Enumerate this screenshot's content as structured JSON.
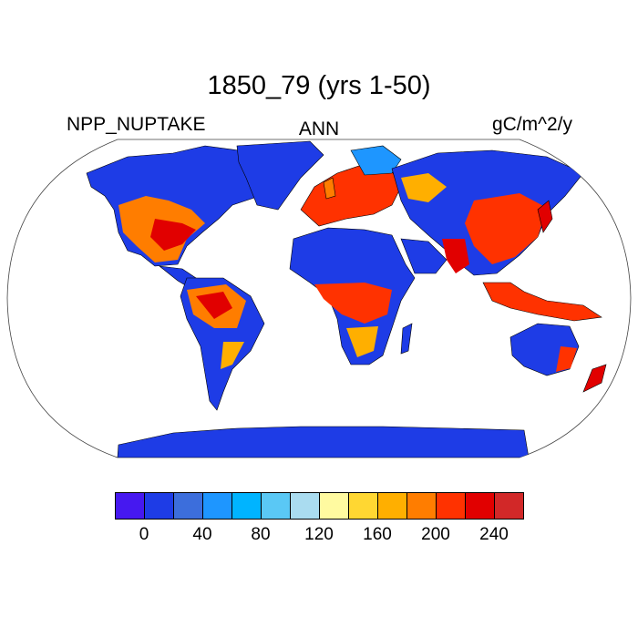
{
  "header": {
    "title": "1850_79 (yrs 1-50)",
    "left": "NPP_NUPTAKE",
    "center": "ANN",
    "right": "gC/m^2/y"
  },
  "colorbar": {
    "colors": [
      "#4618f0",
      "#1e3ce6",
      "#3c6edc",
      "#1e96ff",
      "#00b4ff",
      "#5ac8f5",
      "#aadcf0",
      "#fffaa0",
      "#ffd732",
      "#ffaf00",
      "#ff7d00",
      "#ff3200",
      "#e10000",
      "#d22828"
    ],
    "ticks": [
      "0",
      "40",
      "80",
      "120",
      "160",
      "200",
      "240"
    ]
  },
  "colors": {
    "ocean": "#ffffff",
    "coast": "#000000",
    "low": "#1e3ce6",
    "high": "#e10000"
  }
}
